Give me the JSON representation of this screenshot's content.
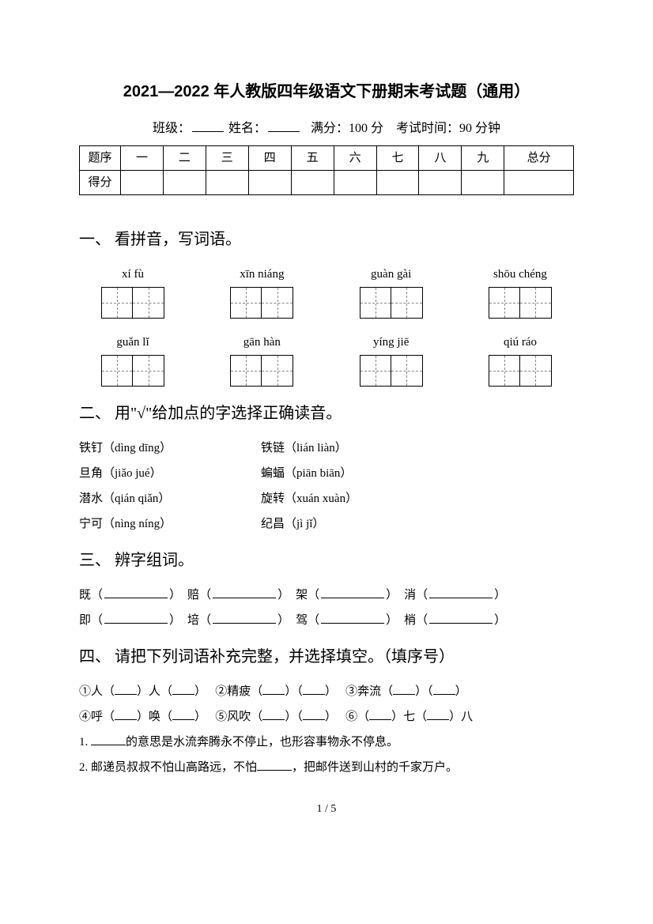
{
  "title": "2021—2022 年人教版四年级语文下册期末考试题（通用）",
  "meta": {
    "class_label": "班级：",
    "name_label": "姓名：",
    "fullscore_label": "满分：100 分",
    "time_label": "考试时间：90 分钟"
  },
  "score_table": {
    "row1": [
      "题序",
      "一",
      "二",
      "三",
      "四",
      "五",
      "六",
      "七",
      "八",
      "九",
      "总分"
    ],
    "row2_label": "得分"
  },
  "q1": {
    "heading": "一、 看拼音，写词语。",
    "row1": [
      "xí fù",
      "xīn niáng",
      "guàn gài",
      "shōu chéng"
    ],
    "row2": [
      "guǎn lǐ",
      "gān hàn",
      "yíng jiē",
      "qiú ráo"
    ]
  },
  "q2": {
    "heading": "二、 用\"√\"给加点的字选择正确读音。",
    "items": [
      [
        "铁钉（dìng  dīng）",
        "铁链（lián  liàn）"
      ],
      [
        "旦角（jiǎo  jué）",
        "蝙蝠（piān  biān）"
      ],
      [
        "潜水（qián  qiǎn）",
        "旋转（xuán  xuàn）"
      ],
      [
        "宁可（nìng  níng）",
        "纪昌（jì  jǐ）"
      ]
    ]
  },
  "q3": {
    "heading": "三、 辨字组词。",
    "row1": [
      "既",
      "赔",
      "架",
      "消"
    ],
    "row2": [
      "即",
      "培",
      "驾",
      "梢"
    ]
  },
  "q4": {
    "heading": "四、 请把下列词语补充完整，并选择填空。（填序号）",
    "line1": {
      "a": "①人（",
      "b": "）人（",
      "c": "）",
      "d": "②精疲（",
      "e": "）（",
      "f": "）",
      "g": "③奔流（",
      "h": "）（",
      "i": "）"
    },
    "line2": {
      "a": "④呼（",
      "b": "）唤（",
      "c": "）",
      "d": "⑤风吹（",
      "e": "）（",
      "f": "）",
      "g": "⑥（",
      "h": "）七（",
      "i": "）八"
    },
    "line3_pre": "1. ",
    "line3_post": "的意思是水流奔腾永不停止，也形容事物永不停息。",
    "line4_pre": "2. 邮递员叔叔不怕山高路远，不怕",
    "line4_post": "，把邮件送到山村的千家万户。"
  },
  "pagenum": "1 / 5"
}
